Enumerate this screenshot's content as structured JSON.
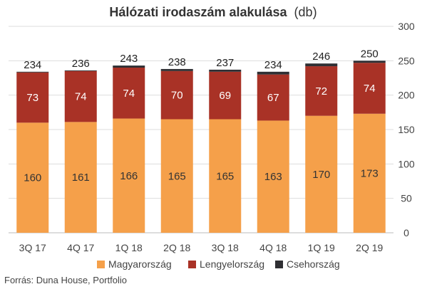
{
  "chart_data": {
    "type": "bar",
    "stacked": true,
    "title": "Hálózati irodaszám alakulása",
    "title_unit": "(db)",
    "categories": [
      "3Q 17",
      "4Q 17",
      "1Q 18",
      "2Q 18",
      "3Q 18",
      "4Q 18",
      "1Q 19",
      "2Q 19"
    ],
    "totals": [
      234,
      236,
      243,
      238,
      237,
      234,
      246,
      250
    ],
    "series": [
      {
        "name": "Magyarország",
        "color": "#f5a04a",
        "values": [
          160,
          161,
          166,
          165,
          165,
          163,
          170,
          173
        ]
      },
      {
        "name": "Lengyelország",
        "color": "#a93226",
        "values": [
          73,
          74,
          74,
          70,
          69,
          67,
          72,
          74
        ]
      },
      {
        "name": "Csehország",
        "color": "#2f2f33",
        "values": [
          1,
          1,
          3,
          3,
          3,
          4,
          4,
          3
        ]
      }
    ],
    "yaxis": {
      "min": 0,
      "max": 300,
      "ticks": [
        0,
        50,
        100,
        150,
        200,
        250,
        300
      ],
      "position": "right"
    },
    "grid": true,
    "legend": "bottom-center"
  },
  "source": "Forrás: Duna House, Portfolio"
}
